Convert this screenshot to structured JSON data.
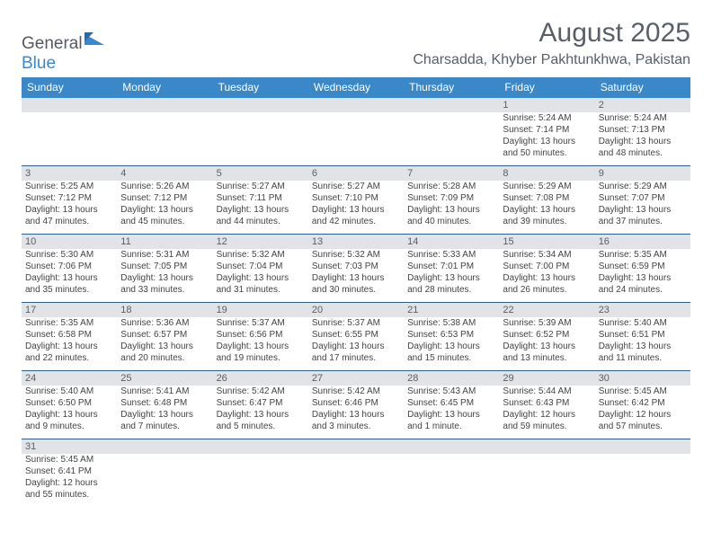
{
  "brand": {
    "part1": "General",
    "part2": "Blue"
  },
  "title": "August 2025",
  "location": "Charsadda, Khyber Pakhtunkhwa, Pakistan",
  "columns": [
    "Sunday",
    "Monday",
    "Tuesday",
    "Wednesday",
    "Thursday",
    "Friday",
    "Saturday"
  ],
  "colors": {
    "header_bg": "#3b88c8",
    "header_text": "#ffffff",
    "daynum_bg": "#e1e3e6",
    "row_border": "#2f5f88",
    "text": "#444444",
    "title_text": "#595f66"
  },
  "fonts": {
    "title_size": 30,
    "location_size": 16,
    "header_size": 12,
    "daynum_size": 11,
    "cell_size": 10
  },
  "weeks": [
    [
      null,
      null,
      null,
      null,
      null,
      {
        "n": "1",
        "sr": "Sunrise: 5:24 AM",
        "ss": "Sunset: 7:14 PM",
        "d1": "Daylight: 13 hours",
        "d2": "and 50 minutes."
      },
      {
        "n": "2",
        "sr": "Sunrise: 5:24 AM",
        "ss": "Sunset: 7:13 PM",
        "d1": "Daylight: 13 hours",
        "d2": "and 48 minutes."
      }
    ],
    [
      {
        "n": "3",
        "sr": "Sunrise: 5:25 AM",
        "ss": "Sunset: 7:12 PM",
        "d1": "Daylight: 13 hours",
        "d2": "and 47 minutes."
      },
      {
        "n": "4",
        "sr": "Sunrise: 5:26 AM",
        "ss": "Sunset: 7:12 PM",
        "d1": "Daylight: 13 hours",
        "d2": "and 45 minutes."
      },
      {
        "n": "5",
        "sr": "Sunrise: 5:27 AM",
        "ss": "Sunset: 7:11 PM",
        "d1": "Daylight: 13 hours",
        "d2": "and 44 minutes."
      },
      {
        "n": "6",
        "sr": "Sunrise: 5:27 AM",
        "ss": "Sunset: 7:10 PM",
        "d1": "Daylight: 13 hours",
        "d2": "and 42 minutes."
      },
      {
        "n": "7",
        "sr": "Sunrise: 5:28 AM",
        "ss": "Sunset: 7:09 PM",
        "d1": "Daylight: 13 hours",
        "d2": "and 40 minutes."
      },
      {
        "n": "8",
        "sr": "Sunrise: 5:29 AM",
        "ss": "Sunset: 7:08 PM",
        "d1": "Daylight: 13 hours",
        "d2": "and 39 minutes."
      },
      {
        "n": "9",
        "sr": "Sunrise: 5:29 AM",
        "ss": "Sunset: 7:07 PM",
        "d1": "Daylight: 13 hours",
        "d2": "and 37 minutes."
      }
    ],
    [
      {
        "n": "10",
        "sr": "Sunrise: 5:30 AM",
        "ss": "Sunset: 7:06 PM",
        "d1": "Daylight: 13 hours",
        "d2": "and 35 minutes."
      },
      {
        "n": "11",
        "sr": "Sunrise: 5:31 AM",
        "ss": "Sunset: 7:05 PM",
        "d1": "Daylight: 13 hours",
        "d2": "and 33 minutes."
      },
      {
        "n": "12",
        "sr": "Sunrise: 5:32 AM",
        "ss": "Sunset: 7:04 PM",
        "d1": "Daylight: 13 hours",
        "d2": "and 31 minutes."
      },
      {
        "n": "13",
        "sr": "Sunrise: 5:32 AM",
        "ss": "Sunset: 7:03 PM",
        "d1": "Daylight: 13 hours",
        "d2": "and 30 minutes."
      },
      {
        "n": "14",
        "sr": "Sunrise: 5:33 AM",
        "ss": "Sunset: 7:01 PM",
        "d1": "Daylight: 13 hours",
        "d2": "and 28 minutes."
      },
      {
        "n": "15",
        "sr": "Sunrise: 5:34 AM",
        "ss": "Sunset: 7:00 PM",
        "d1": "Daylight: 13 hours",
        "d2": "and 26 minutes."
      },
      {
        "n": "16",
        "sr": "Sunrise: 5:35 AM",
        "ss": "Sunset: 6:59 PM",
        "d1": "Daylight: 13 hours",
        "d2": "and 24 minutes."
      }
    ],
    [
      {
        "n": "17",
        "sr": "Sunrise: 5:35 AM",
        "ss": "Sunset: 6:58 PM",
        "d1": "Daylight: 13 hours",
        "d2": "and 22 minutes."
      },
      {
        "n": "18",
        "sr": "Sunrise: 5:36 AM",
        "ss": "Sunset: 6:57 PM",
        "d1": "Daylight: 13 hours",
        "d2": "and 20 minutes."
      },
      {
        "n": "19",
        "sr": "Sunrise: 5:37 AM",
        "ss": "Sunset: 6:56 PM",
        "d1": "Daylight: 13 hours",
        "d2": "and 19 minutes."
      },
      {
        "n": "20",
        "sr": "Sunrise: 5:37 AM",
        "ss": "Sunset: 6:55 PM",
        "d1": "Daylight: 13 hours",
        "d2": "and 17 minutes."
      },
      {
        "n": "21",
        "sr": "Sunrise: 5:38 AM",
        "ss": "Sunset: 6:53 PM",
        "d1": "Daylight: 13 hours",
        "d2": "and 15 minutes."
      },
      {
        "n": "22",
        "sr": "Sunrise: 5:39 AM",
        "ss": "Sunset: 6:52 PM",
        "d1": "Daylight: 13 hours",
        "d2": "and 13 minutes."
      },
      {
        "n": "23",
        "sr": "Sunrise: 5:40 AM",
        "ss": "Sunset: 6:51 PM",
        "d1": "Daylight: 13 hours",
        "d2": "and 11 minutes."
      }
    ],
    [
      {
        "n": "24",
        "sr": "Sunrise: 5:40 AM",
        "ss": "Sunset: 6:50 PM",
        "d1": "Daylight: 13 hours",
        "d2": "and 9 minutes."
      },
      {
        "n": "25",
        "sr": "Sunrise: 5:41 AM",
        "ss": "Sunset: 6:48 PM",
        "d1": "Daylight: 13 hours",
        "d2": "and 7 minutes."
      },
      {
        "n": "26",
        "sr": "Sunrise: 5:42 AM",
        "ss": "Sunset: 6:47 PM",
        "d1": "Daylight: 13 hours",
        "d2": "and 5 minutes."
      },
      {
        "n": "27",
        "sr": "Sunrise: 5:42 AM",
        "ss": "Sunset: 6:46 PM",
        "d1": "Daylight: 13 hours",
        "d2": "and 3 minutes."
      },
      {
        "n": "28",
        "sr": "Sunrise: 5:43 AM",
        "ss": "Sunset: 6:45 PM",
        "d1": "Daylight: 13 hours",
        "d2": "and 1 minute."
      },
      {
        "n": "29",
        "sr": "Sunrise: 5:44 AM",
        "ss": "Sunset: 6:43 PM",
        "d1": "Daylight: 12 hours",
        "d2": "and 59 minutes."
      },
      {
        "n": "30",
        "sr": "Sunrise: 5:45 AM",
        "ss": "Sunset: 6:42 PM",
        "d1": "Daylight: 12 hours",
        "d2": "and 57 minutes."
      }
    ],
    [
      {
        "n": "31",
        "sr": "Sunrise: 5:45 AM",
        "ss": "Sunset: 6:41 PM",
        "d1": "Daylight: 12 hours",
        "d2": "and 55 minutes."
      },
      null,
      null,
      null,
      null,
      null,
      null
    ]
  ]
}
